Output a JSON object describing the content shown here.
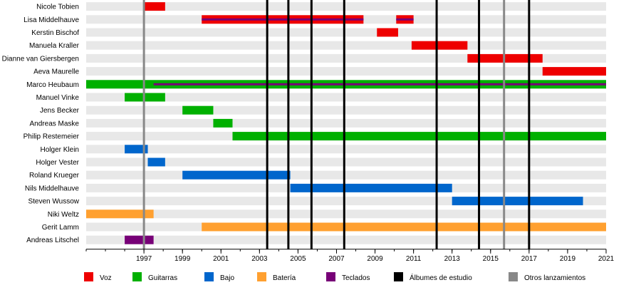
{
  "chart_data": {
    "type": "timeline",
    "xlim": [
      1994.0,
      2021.0
    ],
    "ticks": [
      "1997",
      "1999",
      "2001",
      "2003",
      "2005",
      "2007",
      "2009",
      "2011",
      "2013",
      "2015",
      "2017",
      "2019",
      "2021"
    ],
    "tick_values": [
      1997,
      1999,
      2001,
      2003,
      2005,
      2007,
      2009,
      2011,
      2013,
      2015,
      2017,
      2019,
      2021
    ],
    "grid": "horizontal row stripes",
    "legend_position": "bottom",
    "roles": {
      "voz": {
        "label": "Voz",
        "color": "#ee0000"
      },
      "guitarras": {
        "label": "Guitarras",
        "color": "#00b000"
      },
      "bajo": {
        "label": "Bajo",
        "color": "#0066cc"
      },
      "bateria": {
        "label": "Batería",
        "color": "#ffa030"
      },
      "teclados": {
        "label": "Teclados",
        "color": "#770077"
      },
      "albumes": {
        "label": "Álbumes de estudio",
        "color": "#000000"
      },
      "otros": {
        "label": "Otros lanzamientos",
        "color": "#888888"
      }
    },
    "legend_order": [
      "voz",
      "guitarras",
      "bajo",
      "bateria",
      "teclados",
      "albumes",
      "otros"
    ],
    "members": [
      {
        "name": "Nicole Tobien",
        "spans": [
          {
            "role": "voz",
            "start": 1997.0,
            "end": 1998.1
          }
        ]
      },
      {
        "name": "Lisa Middelhauve",
        "spans": [
          {
            "role": "voz",
            "start": 2000.0,
            "end": 2008.4
          },
          {
            "role": "voz",
            "start": 2010.1,
            "end": 2011.0
          }
        ],
        "secondary": [
          {
            "role": "teclados",
            "start": 2000.0,
            "end": 2008.4
          },
          {
            "role": "teclados",
            "start": 2010.1,
            "end": 2011.0
          }
        ]
      },
      {
        "name": "Kerstin Bischof",
        "spans": [
          {
            "role": "voz",
            "start": 2009.1,
            "end": 2010.2
          }
        ]
      },
      {
        "name": "Manuela Kraller",
        "spans": [
          {
            "role": "voz",
            "start": 2010.9,
            "end": 2013.8
          }
        ]
      },
      {
        "name": "Dianne van Giersbergen",
        "spans": [
          {
            "role": "voz",
            "start": 2013.8,
            "end": 2017.7
          }
        ]
      },
      {
        "name": "Aeva Maurelle",
        "spans": [
          {
            "role": "voz",
            "start": 2017.7,
            "end": 2021.0
          }
        ]
      },
      {
        "name": "Marco Heubaum",
        "spans": [
          {
            "role": "guitarras",
            "start": 1994.0,
            "end": 2021.0
          }
        ],
        "secondary": [
          {
            "role": "teclados",
            "start": 1997.5,
            "end": 2021.0
          }
        ]
      },
      {
        "name": "Manuel Vinke",
        "spans": [
          {
            "role": "guitarras",
            "start": 1996.0,
            "end": 1998.1
          }
        ]
      },
      {
        "name": "Jens Becker",
        "spans": [
          {
            "role": "guitarras",
            "start": 1999.0,
            "end": 2000.6
          }
        ]
      },
      {
        "name": "Andreas Maske",
        "spans": [
          {
            "role": "guitarras",
            "start": 2000.6,
            "end": 2001.6
          }
        ]
      },
      {
        "name": "Philip Restemeier",
        "spans": [
          {
            "role": "guitarras",
            "start": 2001.6,
            "end": 2021.0
          }
        ]
      },
      {
        "name": "Holger Klein",
        "spans": [
          {
            "role": "bajo",
            "start": 1996.0,
            "end": 1997.2
          }
        ]
      },
      {
        "name": "Holger Vester",
        "spans": [
          {
            "role": "bajo",
            "start": 1997.2,
            "end": 1998.1
          }
        ]
      },
      {
        "name": "Roland Krueger",
        "spans": [
          {
            "role": "bajo",
            "start": 1999.0,
            "end": 2004.6
          }
        ]
      },
      {
        "name": "Nils Middelhauve",
        "spans": [
          {
            "role": "bajo",
            "start": 2004.6,
            "end": 2013.0
          }
        ]
      },
      {
        "name": "Steven Wussow",
        "spans": [
          {
            "role": "bajo",
            "start": 2013.0,
            "end": 2019.8
          }
        ]
      },
      {
        "name": "Niki Weltz",
        "spans": [
          {
            "role": "bateria",
            "start": 1994.0,
            "end": 1997.5
          }
        ]
      },
      {
        "name": "Gerit Lamm",
        "spans": [
          {
            "role": "bateria",
            "start": 2000.0,
            "end": 2021.0
          }
        ]
      },
      {
        "name": "Andreas Litschel",
        "spans": [
          {
            "role": "teclados",
            "start": 1996.0,
            "end": 1997.5
          }
        ]
      }
    ],
    "studio_albums": [
      2003.4,
      2004.5,
      2005.7,
      2007.4,
      2012.2,
      2014.4,
      2017.0
    ],
    "other_releases": [
      1997.0,
      2015.7
    ]
  }
}
